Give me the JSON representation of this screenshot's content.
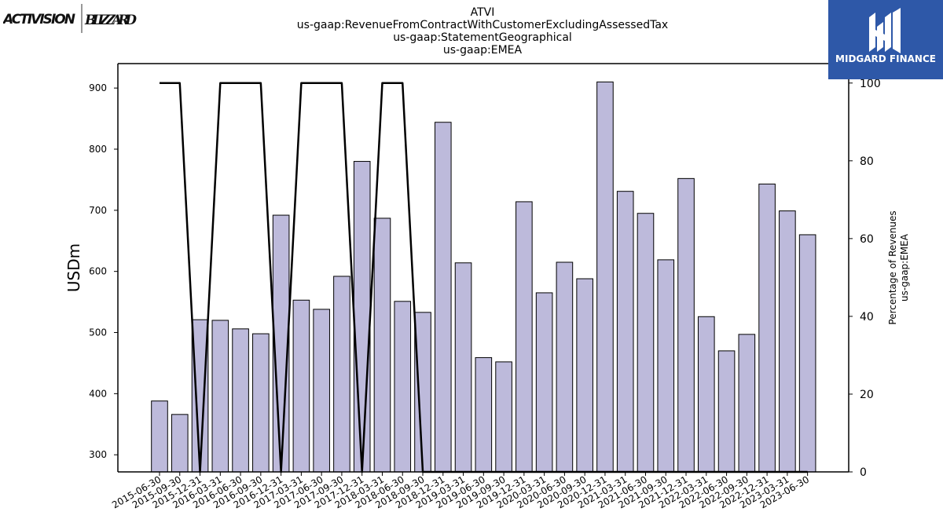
{
  "logos": {
    "left_1": "ACTIVISION",
    "left_2": "BLIZZARD",
    "right": "MIDGARD FINANCE"
  },
  "chart_data": {
    "type": "bar",
    "title_lines": [
      "ATVI",
      "us-gaap:RevenueFromContractWithCustomerExcludingAssessedTax",
      "us-gaap:StatementGeographical",
      "us-gaap:EMEA"
    ],
    "ylabel": "USDm",
    "y2label_lines": [
      "Percentage of Revenues",
      "us-gaap:EMEA"
    ],
    "ylim": [
      272,
      940
    ],
    "y2lim": [
      0,
      105
    ],
    "yticks": [
      300,
      400,
      500,
      600,
      700,
      800,
      900
    ],
    "y2ticks": [
      0,
      20,
      40,
      60,
      80,
      100
    ],
    "categories": [
      "2015-06-30",
      "2015-09-30",
      "2015-12-31",
      "2016-03-31",
      "2016-06-30",
      "2016-09-30",
      "2016-12-31",
      "2017-03-31",
      "2017-06-30",
      "2017-09-30",
      "2017-12-31",
      "2018-03-31",
      "2018-06-30",
      "2018-09-30",
      "2018-12-31",
      "2019-03-31",
      "2019-06-30",
      "2019-09-30",
      "2019-12-31",
      "2020-03-31",
      "2020-06-30",
      "2020-09-30",
      "2020-12-31",
      "2021-03-31",
      "2021-06-30",
      "2021-09-30",
      "2021-12-31",
      "2022-03-31",
      "2022-06-30",
      "2022-09-30",
      "2022-12-31",
      "2023-03-31",
      "2023-06-30"
    ],
    "series": [
      {
        "type": "bar",
        "color": "#bdbadb",
        "values": [
          388,
          366,
          521,
          520,
          506,
          498,
          692,
          553,
          538,
          592,
          780,
          687,
          551,
          533,
          844,
          614,
          459,
          452,
          714,
          565,
          615,
          588,
          910,
          731,
          695,
          619,
          752,
          526,
          470,
          497,
          743,
          699,
          660
        ]
      },
      {
        "type": "line",
        "axis": "right",
        "color": "#000000",
        "values": [
          100,
          100,
          0,
          100,
          100,
          100,
          0,
          100,
          100,
          100,
          0,
          100,
          100,
          0,
          0,
          0,
          0,
          0,
          0,
          0,
          0,
          0,
          0,
          0,
          0,
          0,
          0,
          0,
          0,
          0,
          0,
          0,
          0
        ]
      }
    ],
    "grid": false,
    "legend": "none"
  }
}
